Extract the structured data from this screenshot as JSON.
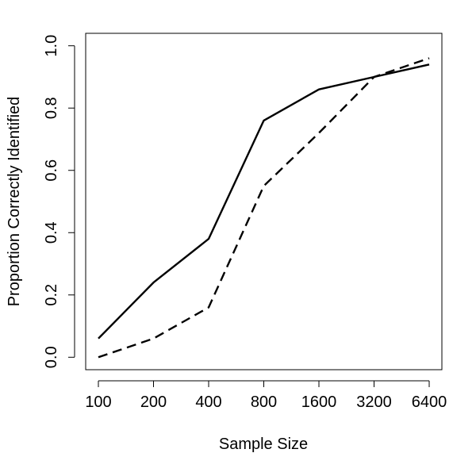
{
  "chart_data": {
    "type": "line",
    "title": "",
    "xlabel": "Sample Size",
    "ylabel": "Proportion Correctly Identified",
    "categories": [
      "100",
      "200",
      "400",
      "800",
      "1600",
      "3200",
      "6400"
    ],
    "x_scale": "categorical",
    "ylim": [
      -0.04,
      1.04
    ],
    "yticks": [
      "0.0",
      "0.2",
      "0.4",
      "0.6",
      "0.8",
      "1.0"
    ],
    "grid": false,
    "legend": "none",
    "series": [
      {
        "style": "solid",
        "color": "#000000",
        "values": [
          0.06,
          0.24,
          0.38,
          0.76,
          0.86,
          0.9,
          0.94
        ]
      },
      {
        "style": "dashed",
        "color": "#000000",
        "values": [
          0.0,
          0.06,
          0.16,
          0.55,
          0.72,
          0.9,
          0.96
        ]
      }
    ]
  }
}
